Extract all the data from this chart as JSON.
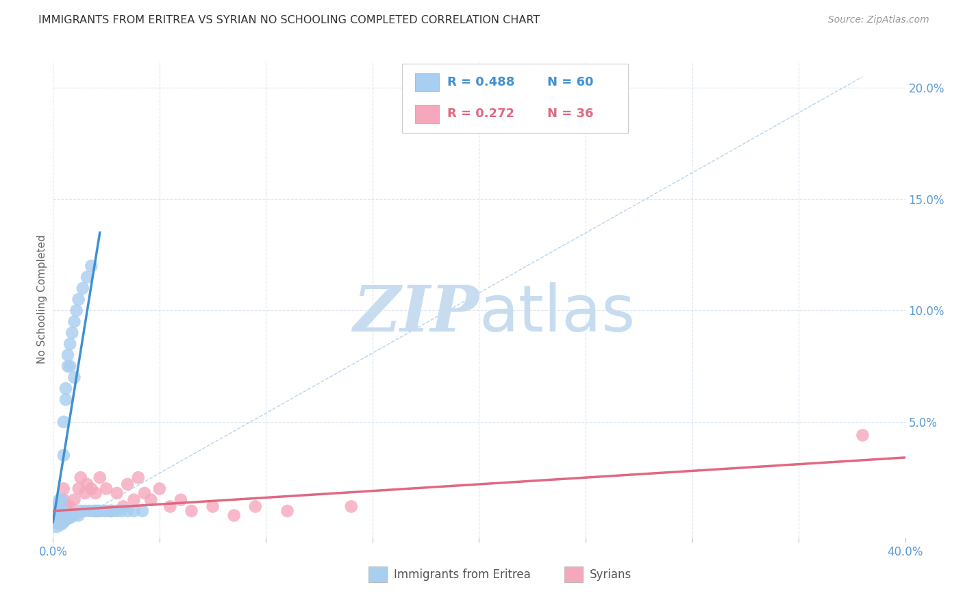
{
  "title": "IMMIGRANTS FROM ERITREA VS SYRIAN NO SCHOOLING COMPLETED CORRELATION CHART",
  "source": "Source: ZipAtlas.com",
  "ylabel": "No Schooling Completed",
  "right_yticks": [
    "20.0%",
    "15.0%",
    "10.0%",
    "5.0%"
  ],
  "right_ytick_vals": [
    0.2,
    0.15,
    0.1,
    0.05
  ],
  "legend_eritrea_r": "R = 0.488",
  "legend_eritrea_n": "N = 60",
  "legend_syrian_r": "R = 0.272",
  "legend_syrian_n": "N = 36",
  "color_eritrea": "#A8CEF0",
  "color_eritrea_line": "#4090D0",
  "color_syrian": "#F5A8BC",
  "color_syrian_line": "#E06880",
  "color_axis_labels": "#5B9BD5",
  "color_grid": "#D8E4F0",
  "color_title": "#333333",
  "color_source": "#999999",
  "color_watermark_zip": "#C8DCF0",
  "color_watermark_atlas": "#C8DCF0",
  "xlim": [
    0.0,
    0.4
  ],
  "ylim": [
    -0.002,
    0.212
  ],
  "eritrea_scatter_x": [
    0.001,
    0.001,
    0.001,
    0.002,
    0.002,
    0.002,
    0.002,
    0.002,
    0.003,
    0.003,
    0.003,
    0.003,
    0.003,
    0.004,
    0.004,
    0.004,
    0.004,
    0.004,
    0.005,
    0.005,
    0.005,
    0.005,
    0.005,
    0.006,
    0.006,
    0.006,
    0.006,
    0.007,
    0.007,
    0.007,
    0.008,
    0.008,
    0.008,
    0.009,
    0.009,
    0.01,
    0.01,
    0.01,
    0.011,
    0.012,
    0.012,
    0.013,
    0.014,
    0.015,
    0.016,
    0.017,
    0.018,
    0.019,
    0.02,
    0.021,
    0.022,
    0.024,
    0.025,
    0.027,
    0.028,
    0.03,
    0.032,
    0.035,
    0.038,
    0.042
  ],
  "eritrea_scatter_y": [
    0.005,
    0.008,
    0.01,
    0.003,
    0.005,
    0.006,
    0.008,
    0.012,
    0.004,
    0.006,
    0.008,
    0.01,
    0.015,
    0.004,
    0.006,
    0.008,
    0.01,
    0.015,
    0.005,
    0.007,
    0.01,
    0.035,
    0.05,
    0.006,
    0.008,
    0.06,
    0.065,
    0.007,
    0.075,
    0.08,
    0.007,
    0.075,
    0.085,
    0.008,
    0.09,
    0.008,
    0.07,
    0.095,
    0.1,
    0.008,
    0.105,
    0.01,
    0.11,
    0.01,
    0.115,
    0.01,
    0.12,
    0.01,
    0.01,
    0.01,
    0.01,
    0.01,
    0.01,
    0.01,
    0.01,
    0.01,
    0.01,
    0.01,
    0.01,
    0.01
  ],
  "syrian_scatter_x": [
    0.002,
    0.003,
    0.004,
    0.005,
    0.005,
    0.006,
    0.007,
    0.008,
    0.009,
    0.01,
    0.012,
    0.013,
    0.015,
    0.016,
    0.018,
    0.02,
    0.022,
    0.025,
    0.027,
    0.03,
    0.033,
    0.035,
    0.038,
    0.04,
    0.043,
    0.046,
    0.05,
    0.055,
    0.06,
    0.065,
    0.075,
    0.085,
    0.095,
    0.11,
    0.14,
    0.38
  ],
  "syrian_scatter_y": [
    0.012,
    0.008,
    0.01,
    0.015,
    0.02,
    0.012,
    0.01,
    0.012,
    0.008,
    0.015,
    0.02,
    0.025,
    0.018,
    0.022,
    0.02,
    0.018,
    0.025,
    0.02,
    0.01,
    0.018,
    0.012,
    0.022,
    0.015,
    0.025,
    0.018,
    0.015,
    0.02,
    0.012,
    0.015,
    0.01,
    0.012,
    0.008,
    0.012,
    0.01,
    0.012,
    0.044
  ],
  "eritrea_trend_x": [
    0.0,
    0.022
  ],
  "eritrea_trend_y": [
    0.005,
    0.135
  ],
  "syrian_trend_x": [
    0.0,
    0.4
  ],
  "syrian_trend_y": [
    0.01,
    0.034
  ],
  "ref_line_x": [
    0.0,
    0.38
  ],
  "ref_line_y": [
    0.0,
    0.205
  ]
}
